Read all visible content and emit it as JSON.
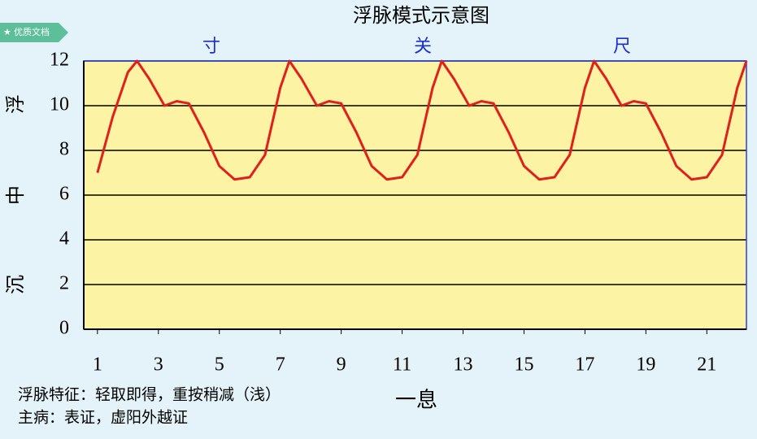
{
  "badge": "优质文档",
  "chart_data": {
    "type": "line",
    "title": "浮脉模式示意图",
    "top_labels": [
      "寸",
      "关",
      "尺"
    ],
    "side_labels": [
      "浮",
      "中",
      "沉"
    ],
    "xlabel": "一息",
    "notes": [
      "浮脉特征：轻取即得，重按稍减（浅）",
      "主病：表证，虚阳外越证"
    ],
    "x": [
      1,
      1.5,
      2,
      2.3,
      2.7,
      3.2,
      3.6,
      4,
      4.5,
      5,
      5.5,
      6,
      6.5,
      7,
      7.3,
      7.7,
      8.2,
      8.6,
      9,
      9.5,
      10,
      10.5,
      11,
      11.5,
      12,
      12.3,
      12.7,
      13.2,
      13.6,
      14,
      14.5,
      15,
      15.5,
      16,
      16.5,
      17,
      17.3,
      17.7,
      18.2,
      18.6,
      19,
      19.5,
      20,
      20.5,
      21,
      21.5,
      22,
      22.3
    ],
    "values": [
      7,
      9.5,
      11.5,
      12,
      11.2,
      10,
      10.2,
      10.1,
      8.8,
      7.3,
      6.7,
      6.8,
      7.8,
      10.8,
      12,
      11.2,
      10,
      10.2,
      10.1,
      8.8,
      7.3,
      6.7,
      6.8,
      7.8,
      10.8,
      12,
      11.2,
      10,
      10.2,
      10.1,
      8.8,
      7.3,
      6.7,
      6.8,
      7.8,
      10.8,
      12,
      11.2,
      10,
      10.2,
      10.1,
      8.8,
      7.3,
      6.7,
      6.8,
      7.8,
      10.8,
      12
    ],
    "color": "#e0201a",
    "xlim": [
      0.55,
      22.3
    ],
    "xticks": [
      1,
      3,
      5,
      7,
      9,
      11,
      13,
      15,
      17,
      19,
      21
    ],
    "ylim": [
      0,
      12
    ],
    "yticks": [
      0,
      2,
      4,
      6,
      8,
      10,
      12
    ],
    "grid": true,
    "background": "#fdf3a4"
  }
}
